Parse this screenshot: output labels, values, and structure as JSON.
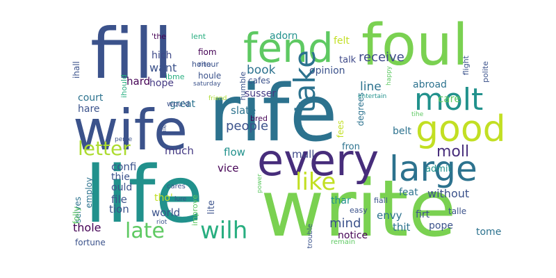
{
  "cloud": {
    "colors": {
      "purple": "#440154",
      "indigo": "#472d7b",
      "blue": "#3b528b",
      "steel": "#2c728e",
      "teal": "#21918c",
      "sea": "#28ae80",
      "green": "#5ec962",
      "lime": "#addc30",
      "yellow": "#fde725"
    },
    "words": [
      {
        "text": "rife",
        "color": "#2c728e",
        "vertical": false
      },
      {
        "text": "life",
        "color": "#21918c",
        "vertical": false
      },
      {
        "text": "write",
        "color": "#7ad151",
        "vertical": false
      },
      {
        "text": "fill",
        "color": "#3b528b",
        "vertical": false
      },
      {
        "text": "wife",
        "color": "#3b528b",
        "vertical": false
      },
      {
        "text": "foul",
        "color": "#7ad151",
        "vertical": false
      },
      {
        "text": "fend",
        "color": "#5ec962",
        "vertical": false
      },
      {
        "text": "every",
        "color": "#472d7b",
        "vertical": false
      },
      {
        "text": "large",
        "color": "#2c728e",
        "vertical": false
      },
      {
        "text": "good",
        "color": "#c2df23",
        "vertical": false
      },
      {
        "text": "molt",
        "color": "#21918c",
        "vertical": false
      },
      {
        "text": "take",
        "color": "#2c728e",
        "vertical": true
      },
      {
        "text": "like",
        "color": "#c2df23",
        "vertical": false
      },
      {
        "text": "wilh",
        "color": "#28ae80",
        "vertical": false
      },
      {
        "text": "late",
        "color": "#5ec962",
        "vertical": false
      },
      {
        "text": "letter",
        "color": "#addc30",
        "vertical": false
      },
      {
        "text": "people",
        "color": "#3b528b",
        "vertical": false
      },
      {
        "text": "receive",
        "color": "#3e4989",
        "vertical": false
      },
      {
        "text": "line",
        "color": "#2c728e",
        "vertical": false
      },
      {
        "text": "moll",
        "color": "#472d7b",
        "vertical": false
      },
      {
        "text": "mind",
        "color": "#3b528b",
        "vertical": false
      },
      {
        "text": "without",
        "color": "#3b528b",
        "vertical": false
      },
      {
        "text": "thole",
        "color": "#440154",
        "vertical": false
      },
      {
        "text": "book",
        "color": "#2c728e",
        "vertical": false
      },
      {
        "text": "want",
        "color": "#3b528b",
        "vertical": false
      },
      {
        "text": "much",
        "color": "#443983",
        "vertical": false
      },
      {
        "text": "flow",
        "color": "#21918c",
        "vertical": false
      },
      {
        "text": "vice",
        "color": "#440154",
        "vertical": false
      },
      {
        "text": "mull",
        "color": "#3e4989",
        "vertical": false
      },
      {
        "text": "slate",
        "color": "#2c728e",
        "vertical": false
      },
      {
        "text": "care",
        "color": "#5ec962",
        "vertical": false
      },
      {
        "text": "hard",
        "color": "#440154",
        "vertical": false
      },
      {
        "text": "hope",
        "color": "#443983",
        "vertical": false
      },
      {
        "text": "hich",
        "color": "#3e4989",
        "vertical": false
      },
      {
        "text": "great",
        "color": "#2c728e",
        "vertical": false
      },
      {
        "text": "court",
        "color": "#2c728e",
        "vertical": false
      },
      {
        "text": "hare",
        "color": "#3b528b",
        "vertical": false
      },
      {
        "text": "adorn",
        "color": "#21918c",
        "vertical": false
      },
      {
        "text": "felt",
        "color": "#c2df23",
        "vertical": false
      },
      {
        "text": "talk",
        "color": "#3e4989",
        "vertical": false
      },
      {
        "text": "opinion",
        "color": "#3b528b",
        "vertical": false
      },
      {
        "text": "abroad",
        "color": "#2c728e",
        "vertical": false
      },
      {
        "text": "susser",
        "color": "#443983",
        "vertical": false
      },
      {
        "text": "fees",
        "color": "#c2df23",
        "vertical": true
      },
      {
        "text": "degrees",
        "color": "#2c728e",
        "vertical": true
      },
      {
        "text": "belt",
        "color": "#2c728e",
        "vertical": false
      },
      {
        "text": "fron",
        "color": "#2c728e",
        "vertical": false
      },
      {
        "text": "admit",
        "color": "#21918c",
        "vertical": false
      },
      {
        "text": "confi",
        "color": "#3b528b",
        "vertical": false
      },
      {
        "text": "thie",
        "color": "#3b528b",
        "vertical": false
      },
      {
        "text": "ould",
        "color": "#3b528b",
        "vertical": false
      },
      {
        "text": "file",
        "color": "#3b528b",
        "vertical": false
      },
      {
        "text": "tion",
        "color": "#3b528b",
        "vertical": false
      },
      {
        "text": "world",
        "color": "#3b528b",
        "vertical": false
      },
      {
        "text": "tho'",
        "color": "#c2df23",
        "vertical": false
      },
      {
        "text": "lite",
        "color": "#3b528b",
        "vertical": true
      },
      {
        "text": "thar",
        "color": "#21918c",
        "vertical": false
      },
      {
        "text": "feat",
        "color": "#2c728e",
        "vertical": false
      },
      {
        "text": "envy",
        "color": "#2c728e",
        "vertical": false
      },
      {
        "text": "thit",
        "color": "#2c728e",
        "vertical": false
      },
      {
        "text": "notice",
        "color": "#440154",
        "vertical": false
      },
      {
        "text": "firt",
        "color": "#3b528b",
        "vertical": false
      },
      {
        "text": "pope",
        "color": "#3b528b",
        "vertical": false
      },
      {
        "text": "tome",
        "color": "#2c728e",
        "vertical": false
      },
      {
        "text": "talle",
        "color": "#3b528b",
        "vertical": false
      },
      {
        "text": "fortune",
        "color": "#3b528b",
        "vertical": false
      },
      {
        "text": "employ",
        "color": "#2c728e",
        "vertical": true
      },
      {
        "text": "selves",
        "color": "#2c728e",
        "vertical": true
      },
      {
        "text": "ihall",
        "color": "#3b528b",
        "vertical": true
      },
      {
        "text": "folly",
        "color": "#5ec962",
        "vertical": true
      },
      {
        "text": "ihould",
        "color": "#28ae80",
        "vertical": true
      },
      {
        "text": "'the",
        "color": "#440154",
        "vertical": false
      },
      {
        "text": "lent",
        "color": "#28ae80",
        "vertical": false
      },
      {
        "text": "honour",
        "color": "#3b528b",
        "vertical": false
      },
      {
        "text": "fiom",
        "color": "#440154",
        "vertical": false
      },
      {
        "text": "houle",
        "color": "#3b528b",
        "vertical": false
      },
      {
        "text": "rite",
        "color": "#3b528b",
        "vertical": false
      },
      {
        "text": "ibme",
        "color": "#28ae80",
        "vertical": false
      },
      {
        "text": "humble",
        "color": "#3b528b",
        "vertical": true
      },
      {
        "text": "cafes",
        "color": "#3b528b",
        "vertical": false
      },
      {
        "text": "saturday",
        "color": "#3b528b",
        "vertical": false
      },
      {
        "text": "friend",
        "color": "#addc30",
        "vertical": false
      },
      {
        "text": "happy",
        "color": "#5ec962",
        "vertical": true
      },
      {
        "text": "flight",
        "color": "#3b528b",
        "vertical": true
      },
      {
        "text": "polite",
        "color": "#3b528b",
        "vertical": true
      },
      {
        "text": "entertain",
        "color": "#21918c",
        "vertical": false
      },
      {
        "text": "tihe",
        "color": "#5ec962",
        "vertical": false
      },
      {
        "text": "wou'd",
        "color": "#3b528b",
        "vertical": false
      },
      {
        "text": "lile",
        "color": "#3b528b",
        "vertical": true
      },
      {
        "text": "bred",
        "color": "#440154",
        "vertical": false
      },
      {
        "text": "perse",
        "color": "#3b528b",
        "vertical": false
      },
      {
        "text": "cares",
        "color": "#3b528b",
        "vertical": false
      },
      {
        "text": "improve",
        "color": "#5ec962",
        "vertical": true
      },
      {
        "text": "lure",
        "color": "#3b528b",
        "vertical": false
      },
      {
        "text": "riot",
        "color": "#3b528b",
        "vertical": false
      },
      {
        "text": "power",
        "color": "#5ec962",
        "vertical": true
      },
      {
        "text": "trouble",
        "color": "#3b528b",
        "vertical": true
      },
      {
        "text": "easy",
        "color": "#3b528b",
        "vertical": false
      },
      {
        "text": "fiall",
        "color": "#3b528b",
        "vertical": false
      },
      {
        "text": "remain",
        "color": "#5ec962",
        "vertical": false
      }
    ]
  }
}
